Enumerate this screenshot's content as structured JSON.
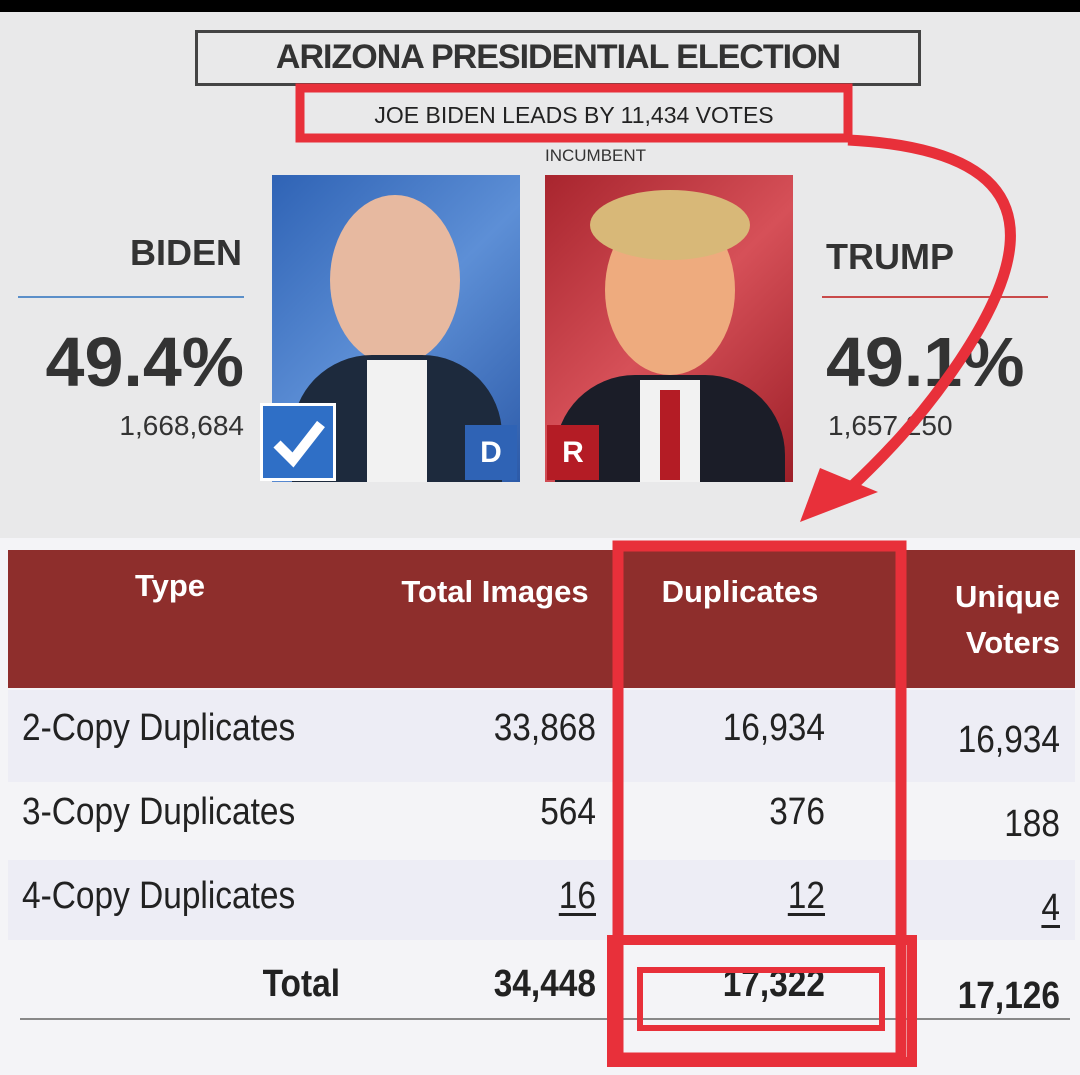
{
  "header": {
    "title": "ARIZONA PRESIDENTIAL ELECTION",
    "subtitle": "JOE BIDEN LEADS BY 11,434 VOTES",
    "incumbent_label": "INCUMBENT"
  },
  "candidates": [
    {
      "name": "BIDEN",
      "percent": "49.4%",
      "votes": "1,668,684",
      "party": "D"
    },
    {
      "name": "TRUMP",
      "percent": "49.1%",
      "votes": "1,657,250",
      "party": "R"
    }
  ],
  "table": {
    "columns": [
      "Type",
      "Total Images",
      "Duplicates",
      "Unique Voters"
    ],
    "rows": [
      [
        "2-Copy Duplicates",
        "33,868",
        "16,934",
        "16,934"
      ],
      [
        "3-Copy Duplicates",
        "564",
        "376",
        "188"
      ],
      [
        "4-Copy Duplicates",
        "16",
        "12",
        "4"
      ],
      [
        "Total",
        "34,448",
        "17,322",
        "17,126"
      ]
    ]
  }
}
